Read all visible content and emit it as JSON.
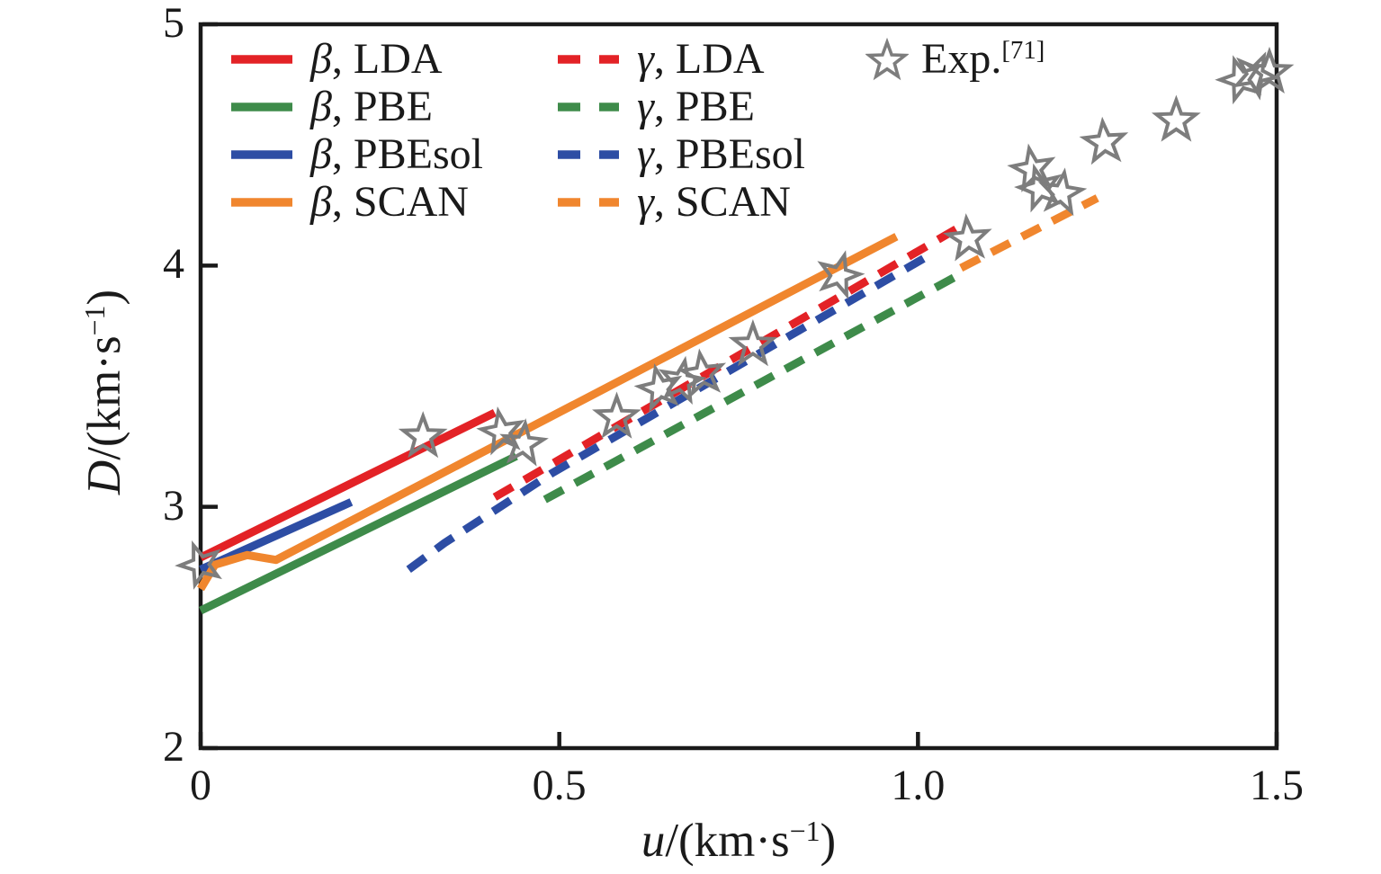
{
  "figure": {
    "background": "#ffffff"
  },
  "colors": {
    "red": "#e32226",
    "green": "#3e8b4a",
    "blue": "#2d4da4",
    "orange": "#f0862e",
    "star_gray": "#7d7d7d",
    "axis": "#1a1a1a"
  },
  "axes": {
    "x": {
      "var": "u",
      "unit_pre": "/(km·s",
      "sup": "−1",
      "unit_post": ")",
      "tick_values": [
        0,
        0.5,
        1.0,
        1.5
      ],
      "ticks": [
        "0",
        "0.5",
        "1.0",
        "1.5"
      ]
    },
    "y": {
      "var": "D",
      "unit_pre": "/(km·s",
      "sup": "−1",
      "unit_post": ")",
      "tick_values": [
        2,
        3,
        4,
        5
      ],
      "ticks": [
        "2",
        "3",
        "4",
        "5"
      ]
    }
  },
  "legend": {
    "entries": [
      {
        "slug": "beta-lda",
        "marker": "line-solid",
        "color": "#e32226",
        "greek": "β",
        "label": ", LDA"
      },
      {
        "slug": "beta-pbe",
        "marker": "line-solid",
        "color": "#3e8b4a",
        "greek": "β",
        "label": ", PBE"
      },
      {
        "slug": "beta-pbesol",
        "marker": "line-solid",
        "color": "#2d4da4",
        "greek": "β",
        "label": ", PBEsol"
      },
      {
        "slug": "beta-scan",
        "marker": "line-solid",
        "color": "#f0862e",
        "greek": "β",
        "label": ", SCAN"
      },
      {
        "slug": "gamma-lda",
        "marker": "line-dashed",
        "color": "#e32226",
        "greek": "γ",
        "label": ", LDA"
      },
      {
        "slug": "gamma-pbe",
        "marker": "line-dashed",
        "color": "#3e8b4a",
        "greek": "γ",
        "label": ", PBE"
      },
      {
        "slug": "gamma-pbesol",
        "marker": "line-dashed",
        "color": "#2d4da4",
        "greek": "γ",
        "label": ", PBEsol"
      },
      {
        "slug": "gamma-scan",
        "marker": "line-dashed",
        "color": "#f0862e",
        "greek": "γ",
        "label": ", SCAN"
      },
      {
        "slug": "exp",
        "marker": "star",
        "color": "#7d7d7d",
        "greek": "",
        "label": "Exp.",
        "sup": "[71]"
      }
    ]
  },
  "chart_data": {
    "type": "line",
    "title": "",
    "xlabel": "u/(km·s⁻¹)",
    "ylabel": "D/(km·s⁻¹)",
    "xlim": [
      0,
      1.5
    ],
    "ylim": [
      2,
      5
    ],
    "x_ticks": [
      0,
      0.5,
      1.0,
      1.5
    ],
    "y_ticks": [
      2,
      3,
      4,
      5
    ],
    "grid": false,
    "legend_position": "upper-left-inside",
    "series": [
      {
        "name": "β, LDA",
        "phase": "β",
        "functional": "LDA",
        "style": "solid",
        "color": "#e32226",
        "points": [
          [
            0,
            2.79
          ],
          [
            0.41,
            3.39
          ]
        ]
      },
      {
        "name": "β, PBE",
        "phase": "β",
        "functional": "PBE",
        "style": "solid",
        "color": "#3e8b4a",
        "points": [
          [
            0,
            2.57
          ],
          [
            0.44,
            3.21
          ]
        ]
      },
      {
        "name": "β, PBEsol",
        "phase": "β",
        "functional": "PBEsol",
        "style": "solid",
        "color": "#2d4da4",
        "points": [
          [
            0,
            2.74
          ],
          [
            0.21,
            3.02
          ]
        ]
      },
      {
        "name": "β, SCAN",
        "phase": "β",
        "functional": "SCAN",
        "style": "solid",
        "color": "#f0862e",
        "points": [
          [
            0,
            2.66
          ],
          [
            0.02,
            2.76
          ],
          [
            0.065,
            2.8
          ],
          [
            0.105,
            2.78
          ],
          [
            0.97,
            4.12
          ]
        ]
      },
      {
        "name": "γ, LDA",
        "phase": "γ",
        "functional": "LDA",
        "style": "dashed",
        "color": "#e32226",
        "points": [
          [
            0.41,
            3.04
          ],
          [
            1.07,
            4.18
          ]
        ]
      },
      {
        "name": "γ, PBE",
        "phase": "γ",
        "functional": "PBE",
        "style": "dashed",
        "color": "#3e8b4a",
        "points": [
          [
            0.48,
            3.03
          ],
          [
            1.05,
            3.95
          ]
        ]
      },
      {
        "name": "γ, PBEsol",
        "phase": "γ",
        "functional": "PBEsol",
        "style": "dashed",
        "color": "#2d4da4",
        "points": [
          [
            0.29,
            2.74
          ],
          [
            0.34,
            2.85
          ],
          [
            0.49,
            3.14
          ],
          [
            1.02,
            4.05
          ]
        ]
      },
      {
        "name": "γ, SCAN",
        "phase": "γ",
        "functional": "SCAN",
        "style": "dashed",
        "color": "#f0862e",
        "points": [
          [
            1.06,
            3.99
          ],
          [
            1.25,
            4.28
          ]
        ]
      }
    ],
    "exp": {
      "name": "Exp.[71]",
      "marker": "star",
      "color": "#7d7d7d",
      "points": [
        [
          0.0,
          2.76,
          -20
        ],
        [
          0.31,
          3.29,
          0
        ],
        [
          0.42,
          3.31,
          -10
        ],
        [
          0.45,
          3.26,
          5
        ],
        [
          0.58,
          3.37,
          0
        ],
        [
          0.64,
          3.49,
          -12
        ],
        [
          0.67,
          3.52,
          10
        ],
        [
          0.7,
          3.55,
          -8
        ],
        [
          0.77,
          3.67,
          0
        ],
        [
          0.89,
          3.96,
          15
        ],
        [
          1.07,
          4.11,
          -5
        ],
        [
          1.16,
          4.4,
          -10
        ],
        [
          1.17,
          4.32,
          -15
        ],
        [
          1.2,
          4.3,
          8
        ],
        [
          1.26,
          4.51,
          -5
        ],
        [
          1.36,
          4.6,
          0
        ],
        [
          1.45,
          4.77,
          -18
        ],
        [
          1.47,
          4.79,
          25
        ],
        [
          1.49,
          4.8,
          0
        ]
      ]
    }
  }
}
